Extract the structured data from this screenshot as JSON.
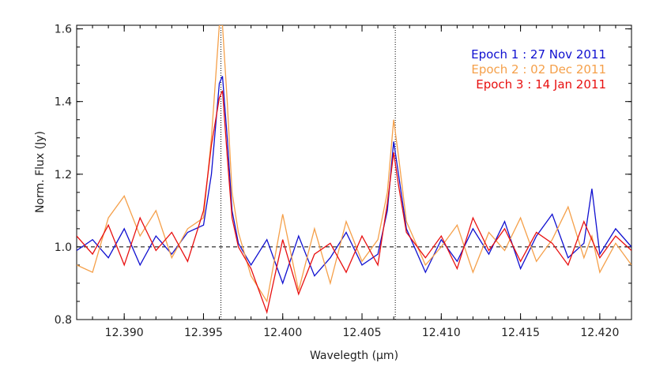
{
  "chart_data": {
    "type": "line",
    "title": "",
    "xlabel": "Wavelegth (μm)",
    "ylabel": "Norm. Flux (Jy)",
    "xlim": [
      12.387,
      12.422
    ],
    "ylim": [
      0.8,
      1.61
    ],
    "xticks": [
      12.39,
      12.395,
      12.4,
      12.405,
      12.41,
      12.415,
      12.42
    ],
    "xtick_labels": [
      "12.390",
      "12.395",
      "12.400",
      "12.405",
      "12.410",
      "12.415",
      "12.420"
    ],
    "yticks": [
      0.8,
      1.0,
      1.2,
      1.4,
      1.6
    ],
    "ytick_labels": [
      "0.8",
      "1.0",
      "1.2",
      "1.4",
      "1.6"
    ],
    "grid": false,
    "legend_position": "top-right",
    "reference_lines": {
      "horizontal_y": 1.0,
      "vertical_x": [
        12.3961,
        12.4071
      ]
    },
    "series": [
      {
        "name": "Epoch 1 : 27 Nov 2011",
        "color": "#1010d0",
        "x": [
          12.387,
          12.388,
          12.389,
          12.39,
          12.391,
          12.392,
          12.393,
          12.394,
          12.395,
          12.3955,
          12.396,
          12.3962,
          12.3965,
          12.3968,
          12.3972,
          12.398,
          12.399,
          12.4,
          12.401,
          12.402,
          12.403,
          12.404,
          12.405,
          12.406,
          12.4066,
          12.407,
          12.4073,
          12.4078,
          12.409,
          12.41,
          12.411,
          12.412,
          12.413,
          12.414,
          12.415,
          12.416,
          12.417,
          12.418,
          12.419,
          12.4195,
          12.42,
          12.421,
          12.422
        ],
        "y": [
          0.99,
          1.02,
          0.97,
          1.05,
          0.95,
          1.03,
          0.98,
          1.04,
          1.06,
          1.2,
          1.45,
          1.47,
          1.3,
          1.1,
          1.01,
          0.95,
          1.02,
          0.9,
          1.03,
          0.92,
          0.97,
          1.04,
          0.95,
          0.98,
          1.1,
          1.29,
          1.2,
          1.05,
          0.93,
          1.02,
          0.96,
          1.05,
          0.98,
          1.07,
          0.94,
          1.03,
          1.09,
          0.97,
          1.01,
          1.16,
          0.98,
          1.05,
          1.0
        ]
      },
      {
        "name": "Epoch 2 : 02 Dec 2011",
        "color": "#f5a04a",
        "x": [
          12.387,
          12.388,
          12.389,
          12.39,
          12.391,
          12.392,
          12.393,
          12.394,
          12.395,
          12.3955,
          12.396,
          12.3962,
          12.3965,
          12.3968,
          12.3972,
          12.398,
          12.399,
          12.4,
          12.401,
          12.402,
          12.403,
          12.404,
          12.405,
          12.406,
          12.4066,
          12.407,
          12.4073,
          12.4078,
          12.409,
          12.41,
          12.411,
          12.412,
          12.413,
          12.414,
          12.415,
          12.416,
          12.417,
          12.418,
          12.419,
          12.4195,
          12.42,
          12.421,
          12.422
        ],
        "y": [
          0.95,
          0.93,
          1.08,
          1.14,
          1.03,
          1.1,
          0.97,
          1.05,
          1.08,
          1.3,
          1.61,
          1.61,
          1.4,
          1.15,
          1.04,
          0.92,
          0.85,
          1.09,
          0.88,
          1.05,
          0.9,
          1.07,
          0.96,
          1.02,
          1.15,
          1.35,
          1.25,
          1.07,
          0.95,
          1.0,
          1.06,
          0.93,
          1.04,
          0.99,
          1.08,
          0.96,
          1.02,
          1.11,
          0.97,
          1.03,
          0.93,
          1.01,
          0.95
        ]
      },
      {
        "name": "Epoch 3 : 14 Jan 2011",
        "color": "#e81010",
        "x": [
          12.387,
          12.388,
          12.389,
          12.39,
          12.391,
          12.392,
          12.393,
          12.394,
          12.395,
          12.3955,
          12.396,
          12.3962,
          12.3965,
          12.3968,
          12.3972,
          12.398,
          12.399,
          12.4,
          12.401,
          12.402,
          12.403,
          12.404,
          12.405,
          12.406,
          12.4066,
          12.407,
          12.4073,
          12.4078,
          12.409,
          12.41,
          12.411,
          12.412,
          12.413,
          12.414,
          12.415,
          12.416,
          12.417,
          12.418,
          12.419,
          12.4195,
          12.42,
          12.421,
          12.422
        ],
        "y": [
          1.03,
          0.98,
          1.06,
          0.95,
          1.08,
          0.99,
          1.04,
          0.96,
          1.1,
          1.28,
          1.41,
          1.43,
          1.25,
          1.08,
          1.0,
          0.94,
          0.82,
          1.02,
          0.87,
          0.98,
          1.01,
          0.93,
          1.03,
          0.95,
          1.12,
          1.26,
          1.17,
          1.04,
          0.97,
          1.03,
          0.94,
          1.08,
          0.99,
          1.05,
          0.96,
          1.04,
          1.01,
          0.95,
          1.07,
          1.02,
          0.97,
          1.03,
          0.99
        ]
      }
    ]
  }
}
